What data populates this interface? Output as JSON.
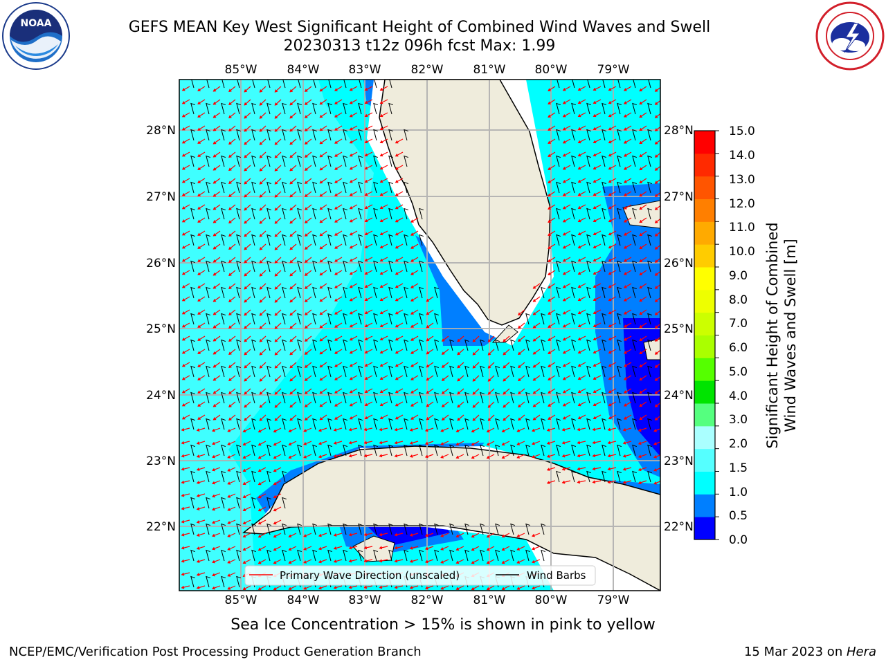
{
  "header": {
    "title_line1": "GEFS MEAN Key West Significant Height of Combined Wind Waves and Swell",
    "title_line2": "20230313 t12z 096h fcst   Max: 1.99"
  },
  "logos": {
    "left": {
      "text": "NOAA",
      "ring_text": "NATIONAL OCEANIC AND ATMOSPHERIC ADMINISTRATION · U.S. DEPARTMENT OF COMMERCE",
      "icon": "noaa-logo"
    },
    "right": {
      "ring_text": "NATIONAL WEATHER SERVICE",
      "icon": "nws-logo"
    }
  },
  "map": {
    "lon_labels": [
      "85°W",
      "84°W",
      "83°W",
      "82°W",
      "81°W",
      "80°W",
      "79°W"
    ],
    "lat_labels": [
      "28°N",
      "27°N",
      "26°N",
      "25°N",
      "24°N",
      "23°N",
      "22°N"
    ],
    "legend": {
      "wave_direction": "Primary Wave Direction (unscaled)",
      "wind_barbs": "Wind Barbs"
    },
    "colors": {
      "land": "#efecdc",
      "sea_light": "#00ffff",
      "sea_mid": "#3fffff",
      "sea_blue": "#007fff",
      "sea_deep": "#0000ff",
      "arrow": "#ff0000",
      "barb": "#000000"
    }
  },
  "colorbar": {
    "title_line1": "Significant Height of Combined",
    "title_line2": "Wind Waves and Swell [m]",
    "tick_labels": [
      "15.0",
      "14.0",
      "13.0",
      "12.0",
      "11.0",
      "10.0",
      "9.0",
      "8.0",
      "7.0",
      "6.0",
      "5.0",
      "4.0",
      "3.0",
      "2.0",
      "1.5",
      "1.0",
      "0.5",
      "0.0"
    ],
    "colors_bottom_to_top": [
      "#0000ff",
      "#007fff",
      "#00ffff",
      "#55ffff",
      "#aaffff",
      "#55ff7f",
      "#00e400",
      "#55ff00",
      "#aaff00",
      "#ccff00",
      "#eeff00",
      "#ffff00",
      "#ffcc00",
      "#ffaa00",
      "#ff7f00",
      "#ff5500",
      "#ff2a00",
      "#ff0000"
    ]
  },
  "subcaption": "Sea Ice Concentration > 15% is shown in pink to yellow",
  "footer": {
    "left": "NCEP/EMC/Verification Post Processing Product Generation Branch",
    "right_prefix": "15 Mar 2023 on ",
    "right_host": "Hera"
  }
}
